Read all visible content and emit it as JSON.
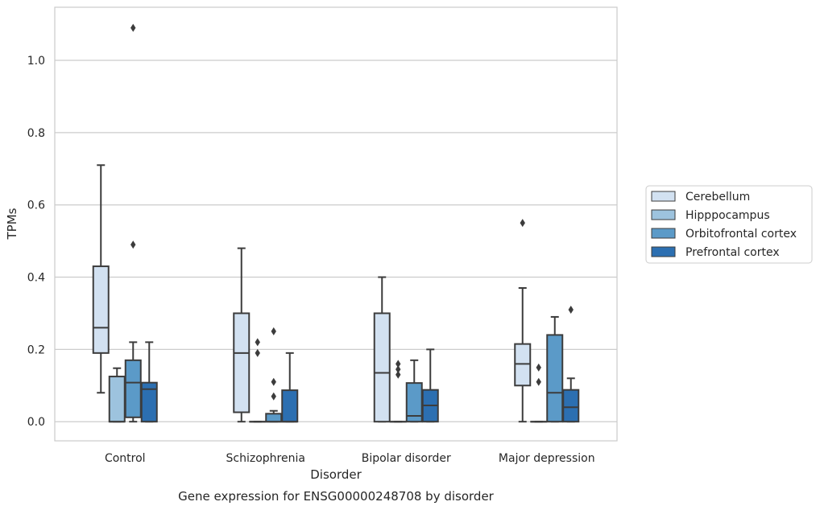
{
  "chart_data": {
    "type": "box",
    "title": "",
    "caption": "Gene expression for ENSG00000248708 by disorder",
    "xlabel": "Disorder",
    "ylabel": "TPMs",
    "ylim": [
      -0.053,
      1.147
    ],
    "yticks": [
      0.0,
      0.2,
      0.4,
      0.6,
      0.8,
      1.0
    ],
    "ytick_labels": [
      "0.0",
      "0.2",
      "0.4",
      "0.6",
      "0.8",
      "1.0"
    ],
    "grid": "horizontal",
    "legend_position": "right",
    "categories": [
      "Control",
      "Schizophrenia",
      "Bipolar disorder",
      "Major depression"
    ],
    "series": [
      {
        "name": "Cerebellum",
        "color": "#d2e1f1",
        "boxes": [
          {
            "whislo": 0.08,
            "q1": 0.19,
            "med": 0.26,
            "q3": 0.43,
            "whishi": 0.71,
            "fliers": []
          },
          {
            "whislo": 0.0,
            "q1": 0.026,
            "med": 0.19,
            "q3": 0.3,
            "whishi": 0.48,
            "fliers": []
          },
          {
            "whislo": 0.0,
            "q1": 0.0,
            "med": 0.135,
            "q3": 0.3,
            "whishi": 0.4,
            "fliers": []
          },
          {
            "whislo": 0.0,
            "q1": 0.1,
            "med": 0.16,
            "q3": 0.215,
            "whishi": 0.37,
            "fliers": [
              0.55
            ]
          }
        ]
      },
      {
        "name": "Hipppocampus",
        "color": "#9dc3de",
        "boxes": [
          {
            "whislo": 0.0,
            "q1": 0.0,
            "med": 0.0,
            "q3": 0.125,
            "whishi": 0.148,
            "fliers": []
          },
          {
            "whislo": 0.0,
            "q1": 0.0,
            "med": 0.0,
            "q3": 0.0,
            "whishi": 0.0,
            "fliers": [
              0.22,
              0.19
            ]
          },
          {
            "whislo": 0.0,
            "q1": 0.0,
            "med": 0.0,
            "q3": 0.0,
            "whishi": 0.0,
            "fliers": [
              0.16,
              0.145,
              0.13
            ]
          },
          {
            "whislo": 0.0,
            "q1": 0.0,
            "med": 0.0,
            "q3": 0.0,
            "whishi": 0.0,
            "fliers": [
              0.15,
              0.11
            ]
          }
        ]
      },
      {
        "name": "Orbitofrontal cortex",
        "color": "#5b9ac8",
        "boxes": [
          {
            "whislo": 0.0,
            "q1": 0.012,
            "med": 0.108,
            "q3": 0.17,
            "whishi": 0.22,
            "fliers": [
              0.49,
              1.09
            ]
          },
          {
            "whislo": 0.0,
            "q1": 0.0,
            "med": 0.0,
            "q3": 0.022,
            "whishi": 0.03,
            "fliers": [
              0.25,
              0.11,
              0.07
            ]
          },
          {
            "whislo": 0.0,
            "q1": 0.0,
            "med": 0.016,
            "q3": 0.107,
            "whishi": 0.17,
            "fliers": []
          },
          {
            "whislo": 0.0,
            "q1": 0.0,
            "med": 0.08,
            "q3": 0.24,
            "whishi": 0.29,
            "fliers": []
          }
        ]
      },
      {
        "name": "Prefrontal cortex",
        "color": "#2c6fb1",
        "boxes": [
          {
            "whislo": 0.0,
            "q1": 0.0,
            "med": 0.09,
            "q3": 0.108,
            "whishi": 0.22,
            "fliers": []
          },
          {
            "whislo": 0.0,
            "q1": 0.0,
            "med": 0.0,
            "q3": 0.087,
            "whishi": 0.19,
            "fliers": []
          },
          {
            "whislo": 0.0,
            "q1": 0.0,
            "med": 0.045,
            "q3": 0.088,
            "whishi": 0.2,
            "fliers": []
          },
          {
            "whislo": 0.0,
            "q1": 0.0,
            "med": 0.04,
            "q3": 0.088,
            "whishi": 0.12,
            "fliers": [
              0.31
            ]
          }
        ]
      }
    ]
  }
}
